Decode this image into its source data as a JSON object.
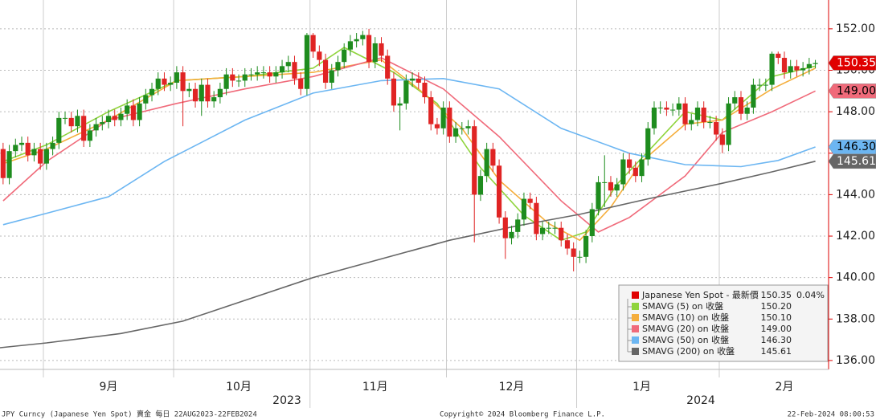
{
  "chart_data": {
    "type": "candlestick",
    "up_color": "#1e8c1e",
    "down_color": "#e02424",
    "xlim": [
      0.5,
      134
    ],
    "ylim": [
      135.57,
      153.39
    ],
    "yticks": [
      {
        "value": 136,
        "label": "136.00"
      },
      {
        "value": 138,
        "label": "138.00"
      },
      {
        "value": 140,
        "label": "140.00"
      },
      {
        "value": 142,
        "label": "142.00"
      },
      {
        "value": 144,
        "label": "144.00"
      },
      {
        "value": 146,
        "label": "146.00"
      },
      {
        "value": 148,
        "label": "148.00"
      },
      {
        "value": 150,
        "label": "150.00"
      },
      {
        "value": 152,
        "label": "152.00"
      }
    ],
    "xticks": [
      {
        "value": 7.5,
        "label": "9月"
      },
      {
        "value": 28.5,
        "label": "10月"
      },
      {
        "value": 50.5,
        "label": "11月"
      },
      {
        "value": 72.5,
        "label": "12月"
      },
      {
        "value": 93.5,
        "label": "1月"
      },
      {
        "value": 116.5,
        "label": "2月"
      }
    ],
    "years": [
      "2023",
      "2024"
    ],
    "grid": true,
    "open": [
      146.0,
      146.2,
      144.8,
      146.1,
      146.4,
      146.5,
      145.9,
      146.2,
      145.5,
      146.2,
      146.5,
      147.7,
      147.7,
      147.3,
      147.8,
      146.6,
      147.1,
      147.4,
      147.5,
      147.8,
      147.6,
      147.9,
      148.3,
      147.6,
      148.4,
      148.8,
      149.1,
      149.6,
      149.3,
      149.4,
      149.9,
      149.0,
      149.1,
      148.5,
      149.3,
      148.5,
      148.7,
      149.1,
      149.8,
      149.5,
      149.5,
      149.8,
      149.8,
      149.9,
      149.9,
      149.7,
      149.9,
      150.2,
      150.4,
      149.6,
      149.1,
      151.7,
      150.9,
      150.5,
      149.4,
      150.0,
      150.4,
      151.0,
      151.4,
      151.5,
      151.7,
      150.4,
      151.3,
      150.7,
      149.6,
      148.3,
      148.4,
      149.5,
      149.6,
      149.4,
      148.7,
      147.4,
      147.2,
      148.2,
      146.8,
      147.2,
      147.2,
      147.3,
      144.0,
      144.9,
      146.2,
      145.4,
      142.9,
      141.9,
      142.2,
      142.8,
      143.8,
      143.6,
      142.1,
      142.4,
      142.4,
      142.4,
      141.8,
      141.4,
      141.0,
      141.0,
      142.0,
      143.3,
      144.6,
      144.6,
      144.2,
      144.5,
      145.7,
      145.3,
      144.9,
      145.7,
      147.2,
      148.2,
      148.2,
      148.1,
      148.1,
      148.4,
      147.4,
      147.6,
      148.2,
      147.5,
      147.5,
      146.9,
      146.4,
      148.4,
      148.7,
      147.9,
      148.2,
      149.3,
      149.3,
      149.3,
      150.8,
      150.6,
      149.9,
      150.2,
      150.0,
      150.1,
      150.3
    ],
    "high": [
      146.5,
      146.5,
      146.4,
      146.7,
      146.8,
      146.8,
      146.5,
      146.5,
      146.5,
      146.8,
      148.0,
      148.0,
      148.0,
      148.1,
      148.1,
      147.4,
      147.7,
      147.8,
      148.1,
      148.1,
      148.2,
      148.6,
      148.6,
      148.7,
      149.1,
      149.4,
      149.9,
      149.9,
      149.7,
      150.2,
      150.2,
      149.4,
      149.4,
      149.6,
      149.6,
      149.0,
      149.4,
      150.1,
      150.1,
      149.8,
      150.1,
      150.1,
      150.2,
      150.2,
      150.2,
      150.2,
      150.5,
      150.7,
      150.7,
      149.9,
      151.8,
      151.8,
      151.2,
      150.8,
      150.3,
      150.7,
      151.3,
      151.7,
      151.8,
      151.9,
      152.0,
      151.6,
      151.6,
      151.0,
      149.9,
      148.7,
      149.8,
      149.9,
      149.9,
      149.7,
      149.0,
      147.7,
      148.5,
      148.5,
      147.5,
      147.5,
      147.6,
      147.6,
      145.2,
      146.5,
      146.5,
      145.7,
      143.2,
      142.5,
      143.1,
      144.1,
      144.1,
      143.9,
      142.7,
      142.7,
      142.7,
      142.7,
      142.1,
      141.7,
      141.3,
      142.3,
      143.6,
      144.9,
      145.9,
      144.9,
      144.8,
      146.0,
      146.0,
      145.6,
      146.0,
      147.5,
      148.5,
      148.5,
      148.5,
      148.4,
      148.7,
      148.7,
      147.9,
      148.5,
      148.5,
      147.8,
      147.8,
      147.2,
      148.7,
      149.0,
      149.0,
      148.5,
      149.6,
      149.6,
      149.6,
      150.9,
      150.9,
      150.9,
      150.5,
      150.5,
      150.4,
      150.6,
      150.5
    ],
    "low": [
      145.7,
      144.5,
      144.5,
      145.8,
      146.1,
      145.6,
      145.6,
      145.2,
      145.2,
      145.9,
      146.2,
      147.4,
      147.0,
      147.0,
      146.3,
      146.3,
      146.8,
      147.1,
      147.2,
      147.3,
      147.3,
      147.6,
      147.3,
      147.3,
      148.1,
      148.5,
      148.8,
      149.0,
      149.0,
      149.1,
      147.3,
      148.7,
      148.2,
      147.8,
      148.2,
      148.2,
      148.4,
      148.8,
      149.2,
      149.2,
      149.2,
      149.5,
      149.5,
      149.6,
      149.4,
      149.4,
      149.6,
      149.9,
      149.3,
      148.8,
      148.8,
      150.6,
      150.2,
      149.1,
      149.1,
      149.7,
      150.1,
      150.7,
      151.1,
      151.2,
      150.1,
      150.1,
      150.4,
      149.3,
      148.0,
      147.1,
      148.1,
      149.2,
      149.1,
      148.4,
      147.1,
      146.9,
      146.9,
      146.5,
      146.5,
      146.9,
      146.9,
      141.7,
      143.7,
      144.6,
      145.1,
      142.6,
      140.9,
      141.6,
      141.9,
      142.5,
      143.3,
      141.8,
      141.8,
      142.1,
      142.1,
      141.5,
      141.1,
      140.3,
      140.7,
      140.7,
      141.7,
      143.0,
      143.4,
      143.9,
      143.9,
      144.2,
      145.0,
      144.6,
      144.6,
      145.4,
      146.9,
      147.9,
      147.8,
      147.8,
      147.8,
      147.1,
      147.1,
      147.3,
      147.2,
      147.2,
      146.6,
      146.0,
      146.1,
      148.1,
      147.6,
      147.6,
      147.9,
      149.0,
      149.0,
      149.0,
      150.3,
      149.6,
      149.6,
      149.7,
      149.7,
      149.8,
      150.1
    ],
    "close": [
      146.2,
      144.8,
      146.1,
      146.4,
      146.5,
      145.9,
      146.2,
      145.5,
      146.2,
      146.5,
      147.7,
      147.7,
      147.3,
      147.8,
      146.6,
      147.1,
      147.4,
      147.5,
      147.8,
      147.6,
      147.9,
      148.3,
      147.6,
      148.4,
      148.8,
      149.1,
      149.6,
      149.3,
      149.4,
      149.9,
      149.0,
      149.1,
      148.5,
      149.3,
      148.5,
      148.7,
      149.1,
      149.8,
      149.5,
      149.5,
      149.8,
      149.8,
      149.9,
      149.9,
      149.7,
      149.9,
      150.2,
      150.4,
      149.6,
      149.1,
      151.7,
      150.9,
      150.5,
      149.4,
      150.0,
      150.4,
      151.0,
      151.4,
      151.5,
      151.7,
      150.4,
      151.3,
      150.7,
      149.6,
      148.3,
      148.4,
      149.5,
      149.6,
      149.4,
      148.7,
      147.4,
      147.2,
      148.2,
      146.8,
      147.2,
      147.2,
      147.3,
      144.0,
      144.9,
      146.2,
      145.4,
      142.9,
      141.9,
      142.2,
      142.8,
      143.8,
      143.6,
      142.1,
      142.4,
      142.4,
      142.4,
      141.8,
      141.4,
      141.0,
      141.0,
      142.0,
      143.3,
      144.6,
      144.6,
      144.2,
      144.5,
      145.7,
      145.3,
      144.9,
      145.7,
      147.2,
      148.2,
      148.2,
      148.1,
      148.1,
      148.4,
      147.4,
      147.6,
      148.2,
      147.5,
      147.5,
      146.9,
      146.4,
      148.4,
      148.7,
      147.9,
      148.2,
      149.3,
      149.3,
      149.3,
      150.8,
      150.6,
      149.9,
      150.2,
      150.0,
      150.1,
      150.3,
      150.35
    ],
    "price": {
      "name": "Japanese Yen Spot - 最新價",
      "color": "#e00000",
      "last": 150.35,
      "last_label": "150.35",
      "change_label": "0.04%"
    },
    "series": [
      {
        "name": "SMAVG (5)  on 收盤",
        "color": "#8fd43c",
        "last": 150.2,
        "last_label": "150.20",
        "tag": false,
        "x": [
          1,
          8,
          18,
          29,
          40,
          51,
          56,
          64,
          71,
          78,
          85,
          91,
          95,
          100,
          106,
          111,
          117,
          125,
          132
        ],
        "values": [
          145.6,
          146.4,
          148.0,
          149.5,
          149.7,
          150.1,
          151.1,
          149.9,
          148.4,
          145.3,
          143.0,
          141.8,
          142.2,
          144.5,
          146.4,
          148.0,
          147.6,
          149.7,
          150.2
        ]
      },
      {
        "name": "SMAVG (10)  on 收盤",
        "color": "#f5ae3c",
        "last": 150.1,
        "last_label": "150.10",
        "tag": false,
        "x": [
          1,
          8,
          18,
          29,
          40,
          51,
          62,
          68,
          75,
          81,
          89,
          94,
          99,
          104,
          111,
          117,
          125,
          132
        ],
        "values": [
          145.5,
          146.2,
          147.6,
          149.5,
          149.7,
          149.9,
          150.5,
          149.1,
          147.2,
          144.7,
          142.6,
          141.8,
          143.4,
          145.6,
          147.4,
          147.6,
          149.1,
          150.1
        ]
      },
      {
        "name": "SMAVG (20)  on 收盤",
        "color": "#f06a7a",
        "last": 149.0,
        "last_label": "149.00",
        "tag": true,
        "x": [
          1,
          8,
          18,
          29,
          40,
          51,
          62,
          72,
          81,
          91,
          97,
          102,
          111,
          117,
          125,
          132
        ],
        "values": [
          143.7,
          145.6,
          147.6,
          148.4,
          149.1,
          149.7,
          150.6,
          149.1,
          146.8,
          143.7,
          142.2,
          142.9,
          144.9,
          147.0,
          148.0,
          149.0
        ]
      },
      {
        "name": "SMAVG (50)  on 收盤",
        "color": "#6cb6f2",
        "last": 146.3,
        "last_label": "146.30",
        "tag": true,
        "x": [
          1,
          8,
          18,
          27,
          40,
          51,
          62,
          72,
          81,
          91,
          102,
          111,
          120,
          126,
          132
        ],
        "values": [
          142.55,
          143.1,
          143.9,
          145.6,
          147.6,
          148.9,
          149.5,
          149.6,
          149.1,
          147.2,
          146.0,
          145.45,
          145.35,
          145.65,
          146.3
        ]
      },
      {
        "name": "SMAVG (200)  on 收盤",
        "color": "#666666",
        "last": 145.61,
        "last_label": "145.61",
        "tag": true,
        "x": [
          0,
          8,
          20,
          30,
          40,
          51,
          62,
          73,
          84,
          94,
          105,
          117,
          125,
          132
        ],
        "values": [
          136.6,
          136.85,
          137.3,
          137.9,
          138.9,
          140.0,
          140.9,
          141.8,
          142.5,
          143.05,
          143.8,
          144.55,
          145.1,
          145.61
        ]
      }
    ],
    "footer": {
      "left": "JPY Curncy (Japanese Yen Spot) 賣金  每日 22AUG2023-22FEB2024",
      "center": "Copyright© 2024 Bloomberg Finance L.P.",
      "right": "22-Feb-2024 08:00:53"
    }
  }
}
